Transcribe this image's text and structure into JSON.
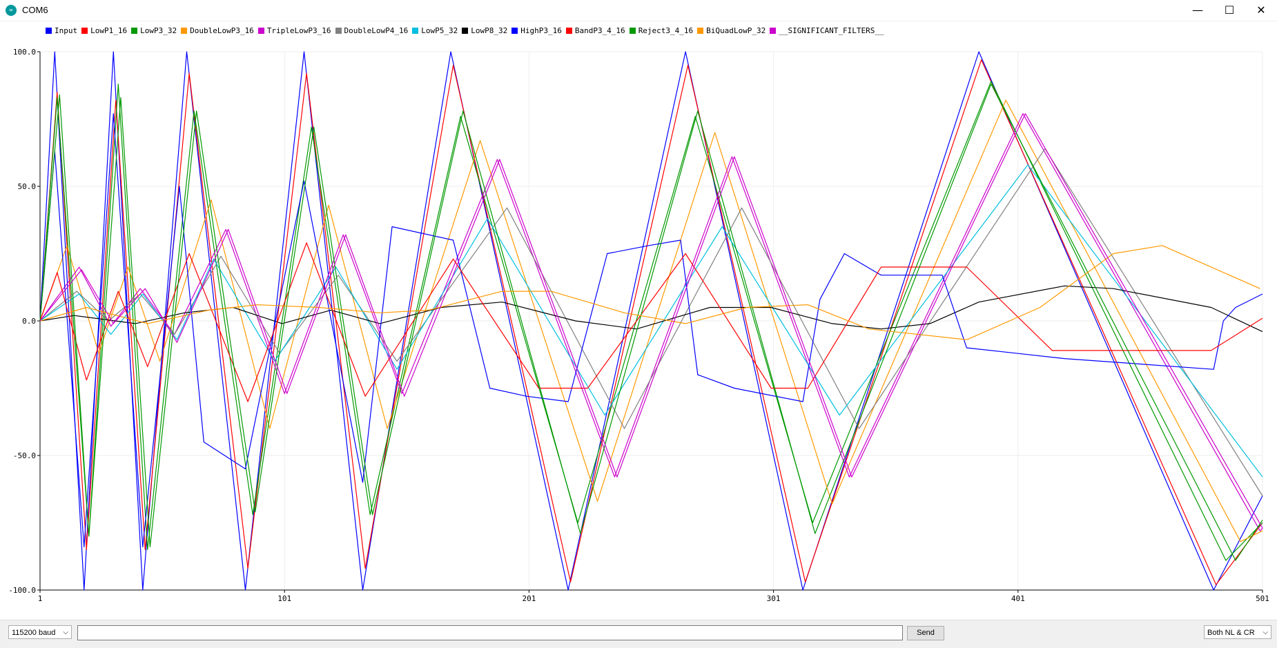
{
  "window": {
    "title": "COM6",
    "app_icon": "arduino-icon",
    "controls": {
      "minimize": "—",
      "maximize": "☐",
      "close": "✕"
    }
  },
  "legend": [
    {
      "name": "Input",
      "color": "#0000ff"
    },
    {
      "name": "LowP1_16",
      "color": "#ff0000"
    },
    {
      "name": "LowP3_32",
      "color": "#009900"
    },
    {
      "name": "DoubleLowP3_16",
      "color": "#ff9900"
    },
    {
      "name": "TripleLowP3_16",
      "color": "#cc00cc"
    },
    {
      "name": "DoubleLowP4_16",
      "color": "#808080"
    },
    {
      "name": "LowP5_32",
      "color": "#00bfe0"
    },
    {
      "name": "LowP8_32",
      "color": "#000000"
    },
    {
      "name": "HighP3_16",
      "color": "#0000ff"
    },
    {
      "name": "BandP3_4_16",
      "color": "#ff0000"
    },
    {
      "name": "Reject3_4_16",
      "color": "#009900"
    },
    {
      "name": "BiQuadLowP_32",
      "color": "#ff9900"
    },
    {
      "name": "__SIGNIFICANT_FILTERS__",
      "color": "#cc00cc"
    }
  ],
  "chart_data": {
    "type": "line",
    "ylim": [
      -100,
      100
    ],
    "xlim": [
      1,
      501
    ],
    "y_ticks": [
      "100.0",
      "50.0",
      "0.0",
      "-50.0",
      "-100.0"
    ],
    "y_tick_values": [
      100,
      50,
      0,
      -50,
      -100
    ],
    "x_ticks": [
      "1",
      "101",
      "201",
      "301",
      "401",
      "501"
    ],
    "x_tick_values": [
      1,
      101,
      201,
      301,
      401,
      501
    ],
    "grid": true,
    "series": [
      {
        "name": "Input",
        "color": "#0000ff",
        "x": [
          1,
          7,
          19,
          31,
          43,
          61,
          85,
          109,
          133,
          169,
          217,
          265,
          313,
          385,
          481,
          501
        ],
        "y": [
          0,
          100,
          -100,
          100,
          -100,
          100,
          -100,
          100,
          -100,
          100,
          -100,
          100,
          -100,
          100,
          -100,
          -65
        ]
      },
      {
        "name": "LowP1_16",
        "color": "#ff0000",
        "x": [
          1,
          8,
          20,
          32,
          44,
          62,
          86,
          110,
          134,
          170,
          218,
          266,
          314,
          386,
          482,
          501
        ],
        "y": [
          0,
          85,
          -85,
          82,
          -85,
          92,
          -92,
          92,
          -92,
          95,
          -97,
          95,
          -97,
          97,
          -98,
          -75
        ]
      },
      {
        "name": "LowP3_32",
        "color": "#009900",
        "x": [
          1,
          8,
          21,
          33,
          45,
          64,
          88,
          112,
          136,
          173,
          221,
          269,
          317,
          390,
          486,
          501
        ],
        "y": [
          0,
          83,
          -80,
          88,
          -85,
          78,
          -72,
          72,
          -72,
          76,
          -75,
          76,
          -75,
          89,
          -89,
          -75
        ]
      },
      {
        "name": "DoubleLowP3_16",
        "color": "#ff9900",
        "x": [
          1,
          12,
          25,
          37,
          50,
          71,
          95,
          119,
          143,
          181,
          229,
          277,
          325,
          396,
          492,
          501
        ],
        "y": [
          0,
          28,
          -12,
          20,
          -15,
          45,
          -40,
          43,
          -40,
          67,
          -67,
          70,
          -68,
          82,
          -82,
          -78
        ]
      },
      {
        "name": "TripleLowP3_16",
        "color": "#cc00cc",
        "x": [
          1,
          17,
          30,
          42,
          56,
          77,
          101,
          125,
          149,
          188,
          236,
          284,
          332,
          403,
          500,
          501
        ],
        "y": [
          0,
          20,
          -2,
          12,
          -5,
          34,
          -27,
          32,
          -27,
          60,
          -58,
          61,
          -58,
          77,
          -78,
          -77
        ]
      },
      {
        "name": "DoubleLowP4_16",
        "color": "#808080",
        "x": [
          1,
          16,
          29,
          42,
          56,
          75,
          99,
          123,
          147,
          192,
          240,
          288,
          336,
          412,
          501
        ],
        "y": [
          0,
          11,
          0,
          10,
          -5,
          24,
          -12,
          17,
          -15,
          42,
          -40,
          42,
          -40,
          64,
          -65
        ]
      },
      {
        "name": "LowP5_32",
        "color": "#00bfe0",
        "x": [
          1,
          17,
          30,
          43,
          57,
          72,
          97,
          122,
          147,
          184,
          232,
          280,
          328,
          405,
          501
        ],
        "y": [
          0,
          10,
          -5,
          10,
          -7,
          23,
          -15,
          20,
          -18,
          38,
          -35,
          35,
          -35,
          58,
          -58
        ]
      },
      {
        "name": "LowP8_32",
        "color": "#000000",
        "x": [
          1,
          15,
          40,
          60,
          80,
          100,
          120,
          140,
          165,
          190,
          220,
          245,
          275,
          300,
          325,
          345,
          365,
          385,
          420,
          440,
          480,
          501
        ],
        "y": [
          0,
          2,
          -1,
          3,
          5,
          -1,
          4,
          -1,
          5,
          7,
          0,
          -3,
          5,
          5,
          -1,
          -3,
          -1,
          7,
          13,
          12,
          5,
          -4
        ]
      },
      {
        "name": "HighP3_16",
        "color": "#0000ff",
        "x": [
          1,
          7,
          19,
          31,
          43,
          58,
          68,
          85,
          109,
          133,
          145,
          170,
          185,
          200,
          217,
          233,
          250,
          263,
          270,
          285,
          313,
          320,
          330,
          345,
          370,
          380,
          400,
          420,
          481,
          485,
          490,
          501
        ],
        "y": [
          0,
          63,
          -84,
          77,
          -84,
          50,
          -45,
          -55,
          52,
          -60,
          35,
          30,
          -25,
          -28,
          -30,
          25,
          28,
          30,
          -20,
          -25,
          -30,
          8,
          25,
          17,
          17,
          -10,
          -12,
          -14,
          -18,
          0,
          5,
          10
        ]
      },
      {
        "name": "BandP3_4_16",
        "color": "#ff0000",
        "x": [
          1,
          8,
          20,
          33,
          45,
          62,
          86,
          110,
          134,
          170,
          205,
          225,
          265,
          300,
          315,
          345,
          380,
          415,
          470,
          480,
          501
        ],
        "y": [
          0,
          18,
          -22,
          11,
          -17,
          25,
          -30,
          29,
          -28,
          23,
          -25,
          -25,
          25,
          -25,
          -25,
          20,
          20,
          -11,
          -11,
          -11,
          1
        ]
      },
      {
        "name": "Reject3_4_16",
        "color": "#009900",
        "x": [
          1,
          9,
          21,
          34,
          46,
          65,
          89,
          113,
          137,
          174,
          222,
          270,
          318,
          390,
          490,
          501
        ],
        "y": [
          0,
          84,
          -80,
          83,
          -84,
          78,
          -71,
          72,
          -72,
          78,
          -79,
          78,
          -79,
          88,
          -89,
          -74
        ]
      },
      {
        "name": "BiQuadLowP_32",
        "color": "#ff9900",
        "x": [
          1,
          20,
          45,
          70,
          90,
          115,
          140,
          160,
          190,
          210,
          240,
          265,
          290,
          315,
          340,
          380,
          410,
          440,
          460,
          500
        ],
        "y": [
          0,
          5,
          -1,
          4,
          6,
          5,
          3,
          4,
          11,
          11,
          3,
          -1,
          5,
          6,
          -3,
          -7,
          5,
          25,
          28,
          12
        ]
      },
      {
        "name": "__SIGNIFICANT_FILTERS__",
        "color": "#cc00cc",
        "x": [
          1,
          18,
          31,
          44,
          57,
          78,
          102,
          126,
          150,
          189,
          237,
          285,
          333,
          404,
          501
        ],
        "y": [
          0,
          19,
          -1,
          12,
          -8,
          34,
          -27,
          32,
          -28,
          60,
          -58,
          61,
          -58,
          77,
          -77
        ]
      }
    ]
  },
  "bottom": {
    "baud": "115200 baud",
    "message_value": "",
    "send_label": "Send",
    "line_ending": "Both NL & CR"
  }
}
